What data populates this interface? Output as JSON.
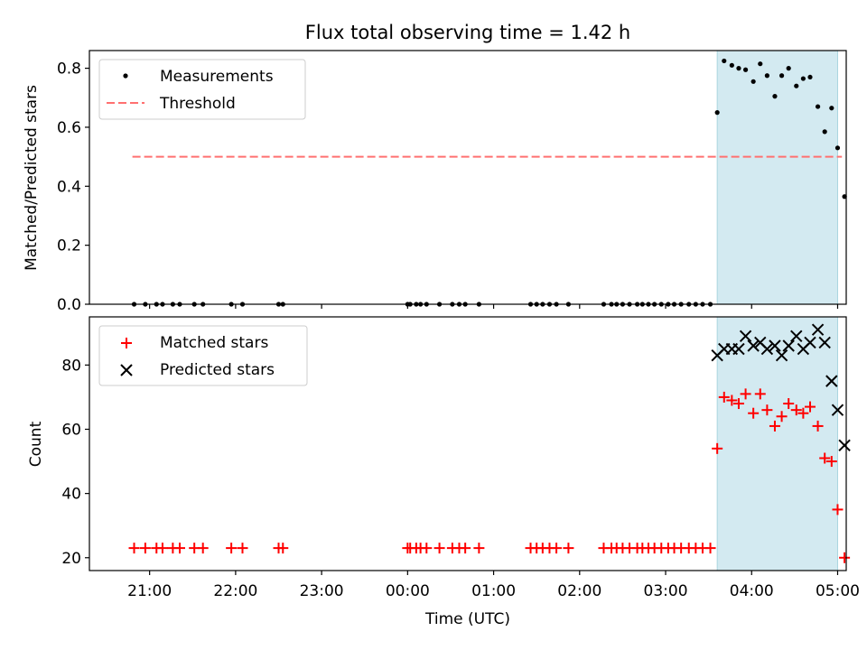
{
  "title": "Flux total observing time = 1.42 h",
  "colors": {
    "measurement": "#000000",
    "threshold": "#ff7070",
    "matched": "#ff0000",
    "predicted": "#000000",
    "highlight": "#d3eaf1",
    "highlight_edge": "#a9d6df"
  },
  "chart_data": [
    {
      "type": "scatter",
      "ylabel": "Matched/Predicted stars",
      "xlabel": "",
      "xlim_hours": [
        20.3,
        29.1
      ],
      "ylim": [
        0,
        0.86
      ],
      "yticks": [
        0.0,
        0.2,
        0.4,
        0.6,
        0.8
      ],
      "ytick_labels": [
        "0.0",
        "0.2",
        "0.4",
        "0.6",
        "0.8"
      ],
      "highlight_hours": [
        27.6,
        29.0
      ],
      "legend": [
        "Measurements",
        "Threshold"
      ],
      "legend_position": "upper left",
      "threshold": {
        "value": 0.5,
        "x_hours": [
          20.8,
          29.05
        ]
      },
      "series": [
        {
          "name": "Measurements",
          "x_hours": [
            20.82,
            20.95,
            21.08,
            21.15,
            21.27,
            21.35,
            21.52,
            21.62,
            21.95,
            22.08,
            22.5,
            22.55,
            24.0,
            24.03,
            24.1,
            24.15,
            24.22,
            24.37,
            24.52,
            24.6,
            24.67,
            24.83,
            25.43,
            25.5,
            25.57,
            25.65,
            25.73,
            25.87,
            26.28,
            26.37,
            26.43,
            26.5,
            26.58,
            26.67,
            26.73,
            26.8,
            26.87,
            26.95,
            27.03,
            27.1,
            27.18,
            27.27,
            27.35,
            27.43,
            27.52,
            27.6,
            27.68,
            27.77,
            27.85,
            27.93,
            28.02,
            28.1,
            28.18,
            28.27,
            28.35,
            28.43,
            28.52,
            28.6,
            28.68,
            28.77,
            28.85,
            28.93,
            29.0,
            29.08
          ],
          "y": [
            0,
            0,
            0,
            0,
            0,
            0,
            0,
            0,
            0,
            0,
            0,
            0,
            0,
            0,
            0,
            0,
            0,
            0,
            0,
            0,
            0,
            0,
            0,
            0,
            0,
            0,
            0,
            0,
            0,
            0,
            0,
            0,
            0,
            0,
            0,
            0,
            0,
            0,
            0,
            0,
            0,
            0,
            0,
            0,
            0,
            0.65,
            0.825,
            0.81,
            0.8,
            0.795,
            0.755,
            0.815,
            0.775,
            0.705,
            0.775,
            0.8,
            0.74,
            0.765,
            0.77,
            0.67,
            0.585,
            0.665,
            0.53,
            0.365
          ]
        }
      ]
    },
    {
      "type": "scatter",
      "ylabel": "Count",
      "xlabel": "Time (UTC)",
      "xlim_hours": [
        20.3,
        29.1
      ],
      "ylim": [
        16,
        95
      ],
      "yticks": [
        20,
        40,
        60,
        80
      ],
      "ytick_labels": [
        "20",
        "40",
        "60",
        "80"
      ],
      "xticks_hours": [
        21,
        22,
        23,
        24,
        25,
        26,
        27,
        28,
        29
      ],
      "xtick_labels": [
        "21:00",
        "22:00",
        "23:00",
        "00:00",
        "01:00",
        "02:00",
        "03:00",
        "04:00",
        "05:00"
      ],
      "highlight_hours": [
        27.6,
        29.0
      ],
      "legend": [
        "Matched stars",
        "Predicted stars"
      ],
      "legend_position": "upper left",
      "series": [
        {
          "name": "Matched stars",
          "marker": "plus",
          "x_hours": [
            20.82,
            20.95,
            21.08,
            21.15,
            21.27,
            21.35,
            21.52,
            21.62,
            21.95,
            22.08,
            22.5,
            22.55,
            24.0,
            24.03,
            24.1,
            24.15,
            24.22,
            24.37,
            24.52,
            24.6,
            24.67,
            24.83,
            25.43,
            25.5,
            25.57,
            25.65,
            25.73,
            25.87,
            26.28,
            26.37,
            26.43,
            26.5,
            26.58,
            26.67,
            26.73,
            26.8,
            26.87,
            26.95,
            27.03,
            27.1,
            27.18,
            27.27,
            27.35,
            27.43,
            27.52,
            27.6,
            27.68,
            27.77,
            27.85,
            27.93,
            28.02,
            28.1,
            28.18,
            28.27,
            28.35,
            28.43,
            28.52,
            28.6,
            28.68,
            28.77,
            28.85,
            28.93,
            29.0,
            29.08
          ],
          "y": [
            23,
            23,
            23,
            23,
            23,
            23,
            23,
            23,
            23,
            23,
            23,
            23,
            23,
            23,
            23,
            23,
            23,
            23,
            23,
            23,
            23,
            23,
            23,
            23,
            23,
            23,
            23,
            23,
            23,
            23,
            23,
            23,
            23,
            23,
            23,
            23,
            23,
            23,
            23,
            23,
            23,
            23,
            23,
            23,
            23,
            54,
            70,
            69,
            68,
            71,
            65,
            71,
            66,
            61,
            64,
            68,
            66,
            65,
            67,
            61,
            51,
            50,
            35,
            20
          ]
        },
        {
          "name": "Predicted stars",
          "marker": "x",
          "x_hours": [
            27.6,
            27.68,
            27.77,
            27.85,
            27.93,
            28.02,
            28.1,
            28.18,
            28.27,
            28.35,
            28.43,
            28.52,
            28.6,
            28.68,
            28.77,
            28.85,
            28.93,
            29.0,
            29.08
          ],
          "y": [
            83,
            85,
            85,
            85,
            89,
            86,
            87,
            85,
            86,
            83,
            86,
            89,
            85,
            87,
            91,
            87,
            75,
            66,
            55
          ]
        }
      ]
    }
  ]
}
